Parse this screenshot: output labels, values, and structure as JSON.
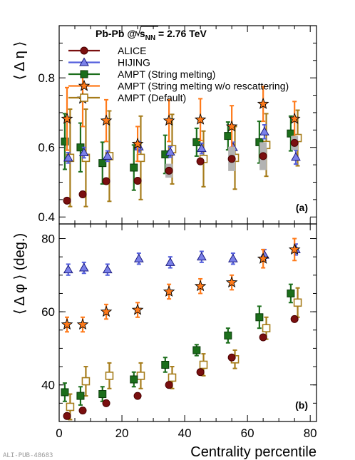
{
  "figure": {
    "title_prefix": "Pb-Pb @ ",
    "title_sqrt": "s",
    "title_sub": "NN",
    "title_suffix": " = 2.76 TeV",
    "xlabel": "Centrality percentile",
    "pub_id": "ALI-PUB-48683"
  },
  "chart_data": [
    {
      "type": "scatter",
      "panel_label": "(a)",
      "ylabel": "⟨ Δ η ⟩",
      "xlim": [
        0,
        82
      ],
      "ylim": [
        0.38,
        0.95
      ],
      "xticks": [
        0,
        20,
        40,
        60,
        80
      ],
      "yticks": [
        0.4,
        0.6,
        0.8
      ],
      "ytick_labels": [
        "0.4",
        "0.6",
        "0.8"
      ],
      "legend_position": "top-left",
      "series": [
        {
          "name": "ALICE",
          "marker": "circle",
          "color": "#7a0f0f",
          "stroke": "#4a0000",
          "fill": "#7a0f0f",
          "x": [
            2.5,
            7.5,
            15,
            25,
            35,
            45,
            55,
            65,
            75
          ],
          "y": [
            0.447,
            0.465,
            0.503,
            0.504,
            0.533,
            0.56,
            0.567,
            0.575,
            0.613
          ],
          "err": [
            0,
            0,
            0,
            0,
            0,
            0,
            0,
            0,
            0
          ],
          "sys": [
            0,
            0,
            0,
            0,
            0.02,
            0,
            0.035,
            0.04,
            0.02
          ]
        },
        {
          "name": "HIJING",
          "marker": "triangle",
          "color": "#5560dd",
          "stroke": "#1a1a80",
          "fill": "#7a80e8",
          "x": [
            2.9,
            7.9,
            15.4,
            25.4,
            35.4,
            45.4,
            55.4,
            65.4,
            75.4
          ],
          "y": [
            0.57,
            0.585,
            0.575,
            0.602,
            0.587,
            0.597,
            0.6,
            0.645,
            0.572
          ],
          "err": [
            0.015,
            0.015,
            0.015,
            0.015,
            0.015,
            0.015,
            0.015,
            0.02,
            0.02
          ],
          "sys": [
            0,
            0,
            0,
            0,
            0,
            0,
            0,
            0,
            0
          ]
        },
        {
          "name": "AMPT (String melting)",
          "marker": "square",
          "color": "#1b6e1b",
          "stroke": "#0a3a0a",
          "fill": "#1b6e1b",
          "x": [
            1.8,
            6.8,
            13.8,
            23.8,
            33.8,
            43.8,
            53.8,
            63.8,
            73.8
          ],
          "y": [
            0.617,
            0.6,
            0.555,
            0.542,
            0.58,
            0.615,
            0.633,
            0.615,
            0.64
          ],
          "err": [
            0.08,
            0.07,
            0.06,
            0.065,
            0.055,
            0.04,
            0.04,
            0.06,
            0.05
          ],
          "sys": [
            0,
            0,
            0,
            0,
            0,
            0,
            0,
            0,
            0
          ]
        },
        {
          "name": "AMPT (String melting w/o rescattering)",
          "marker": "star",
          "color": "#ff7a1a",
          "stroke": "#000000",
          "fill": "#ff7a1a",
          "x": [
            2.5,
            7.5,
            15,
            25,
            35,
            45,
            55,
            65,
            75
          ],
          "y": [
            0.682,
            0.74,
            0.677,
            0.61,
            0.677,
            0.68,
            0.66,
            0.725,
            0.682
          ],
          "err": [
            0.09,
            0.08,
            0.06,
            0.05,
            0.06,
            0.06,
            0.06,
            0.05,
            0.05
          ],
          "sys": [
            0,
            0,
            0,
            0,
            0,
            0,
            0,
            0,
            0
          ]
        },
        {
          "name": "AMPT (Default)",
          "marker": "square-open",
          "color": "#a67c1a",
          "stroke": "#a67c1a",
          "fill": "#ffffff",
          "x": [
            3.5,
            8.5,
            16,
            26,
            36,
            46,
            56,
            66,
            76
          ],
          "y": [
            0.57,
            0.57,
            0.575,
            0.57,
            0.595,
            0.567,
            0.57,
            0.607,
            0.627
          ],
          "err": [
            0.14,
            0.14,
            0.13,
            0.12,
            0.1,
            0.08,
            0.09,
            0.09,
            0.08
          ],
          "sys": [
            0,
            0,
            0,
            0,
            0,
            0,
            0,
            0,
            0
          ]
        }
      ]
    },
    {
      "type": "scatter",
      "panel_label": "(b)",
      "ylabel": "⟨ Δ φ ⟩ (deg.)",
      "xlim": [
        0,
        82
      ],
      "ylim": [
        30,
        84
      ],
      "xticks": [
        0,
        20,
        40,
        60,
        80
      ],
      "xtick_labels": [
        "0",
        "20",
        "40",
        "60",
        "80"
      ],
      "yticks": [
        40,
        60,
        80
      ],
      "ytick_labels": [
        "40",
        "60",
        "80"
      ],
      "series": [
        {
          "name": "ALICE",
          "x": [
            2.5,
            7.5,
            15,
            25,
            35,
            45,
            55,
            65,
            75
          ],
          "y": [
            31.5,
            33.0,
            35.0,
            37.0,
            40.0,
            43.5,
            47.5,
            53.0,
            58.0
          ],
          "err": [
            0,
            0,
            0,
            0,
            0,
            0,
            0,
            0,
            0
          ]
        },
        {
          "name": "HIJING",
          "x": [
            2.9,
            7.9,
            15.4,
            25.4,
            35.4,
            45.4,
            55.4,
            65.4,
            75.4
          ],
          "y": [
            71.5,
            72.0,
            71.5,
            74.5,
            73.5,
            75.0,
            74.5,
            75.5,
            77.0
          ],
          "err": [
            1.5,
            1.5,
            1.5,
            1.5,
            1.5,
            1.5,
            1.5,
            1.5,
            1.5
          ]
        },
        {
          "name": "AMPT (String melting)",
          "x": [
            1.8,
            6.8,
            13.8,
            23.8,
            33.8,
            43.8,
            53.8,
            63.8,
            73.8
          ],
          "y": [
            38.0,
            37.0,
            37.5,
            41.5,
            45.5,
            49.5,
            53.5,
            58.5,
            65.0
          ],
          "err": [
            2.5,
            2.5,
            2.0,
            2.0,
            2.0,
            1.5,
            2.0,
            3.0,
            2.5
          ]
        },
        {
          "name": "AMPT (String melting w/o rescattering)",
          "x": [
            2.5,
            7.5,
            15,
            25,
            35,
            45,
            55,
            65,
            75
          ],
          "y": [
            56.5,
            56.5,
            60.0,
            60.5,
            65.5,
            67.0,
            68.0,
            74.5,
            77.0
          ],
          "err": [
            2.0,
            2.0,
            2.0,
            2.0,
            2.0,
            2.0,
            2.0,
            2.5,
            3.0
          ]
        },
        {
          "name": "AMPT (Default)",
          "x": [
            3.5,
            8.5,
            16,
            26,
            36,
            46,
            56,
            66,
            76
          ],
          "y": [
            34.0,
            41.0,
            42.5,
            42.5,
            42.0,
            45.5,
            47.0,
            55.5,
            62.5
          ],
          "err": [
            3.5,
            4.0,
            3.5,
            3.5,
            3.0,
            3.0,
            2.5,
            3.0,
            4.0
          ]
        }
      ]
    }
  ]
}
